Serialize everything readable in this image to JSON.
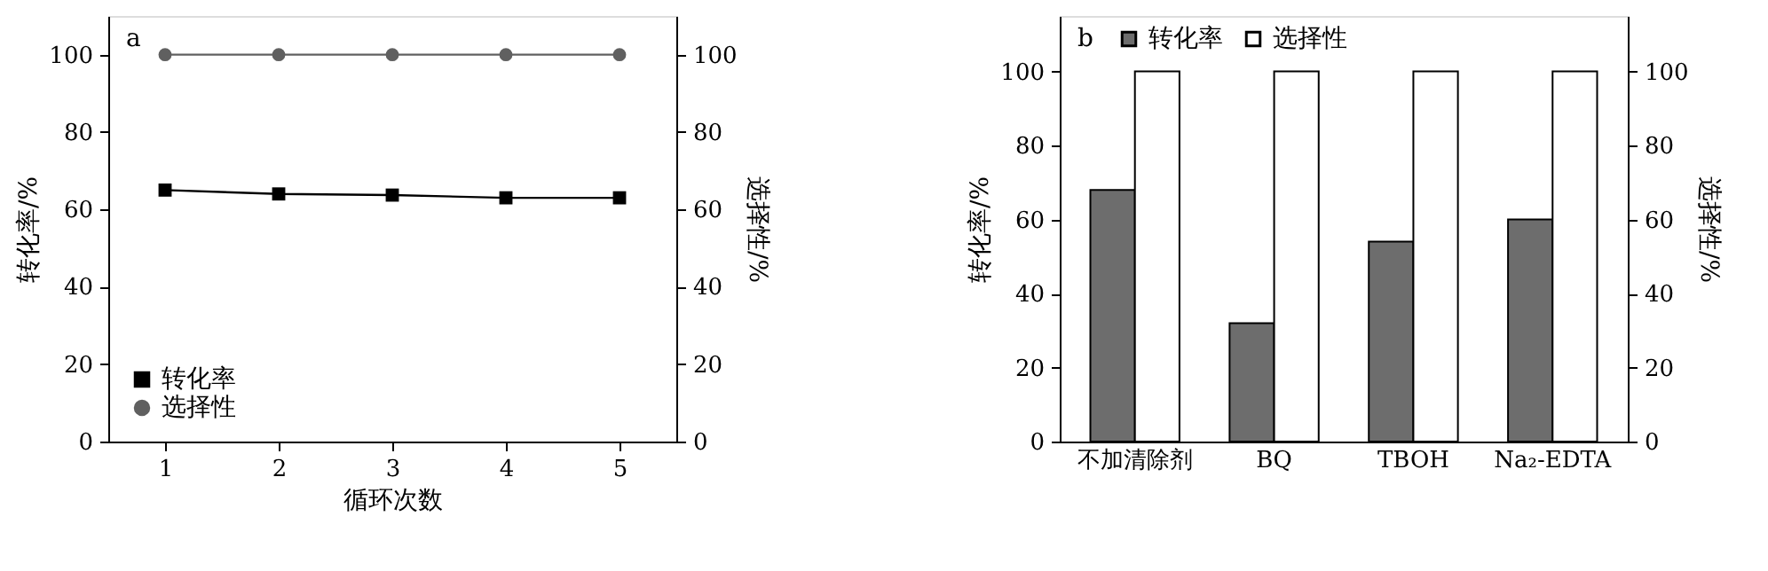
{
  "chart_data": [
    {
      "type": "line",
      "x": [
        1,
        2,
        3,
        4,
        5
      ],
      "xlabel": "循环次数",
      "ylabel": "转化率/%",
      "y2label": "选择性/%",
      "xlim": [
        0.5,
        5.5
      ],
      "xticks": [
        1,
        2,
        3,
        4,
        5
      ],
      "ylim": [
        0,
        110
      ],
      "yticks": [
        0,
        20,
        40,
        60,
        80,
        100
      ],
      "y2lim": [
        0,
        110
      ],
      "y2ticks": [
        0,
        20,
        40,
        60,
        80,
        100
      ],
      "legend": "bottom left",
      "annotations": [
        "a"
      ],
      "series": [
        {
          "name": "转化率",
          "color": "#000000",
          "marker": "square",
          "values": [
            65,
            64,
            63.7,
            63,
            63
          ]
        },
        {
          "name": "选择性",
          "color": "#606060",
          "marker": "circle",
          "axis": "y2",
          "values": [
            100,
            100,
            100,
            100,
            100
          ]
        }
      ]
    },
    {
      "type": "bar",
      "categories": [
        "不加清除剂",
        "BQ",
        "TBOH",
        "Na₂-EDTA"
      ],
      "ylabel": "转化率/%",
      "y2label": "选择性/%",
      "ylim": [
        0,
        115
      ],
      "yticks": [
        0,
        20,
        40,
        60,
        80,
        100
      ],
      "y2lim": [
        0,
        115
      ],
      "y2ticks": [
        0,
        20,
        40,
        60,
        80,
        100
      ],
      "legend": "top left",
      "annotations": [
        "b"
      ],
      "series": [
        {
          "name": "转化率",
          "color": "#6d6d6d",
          "values": [
            68,
            32,
            54,
            60
          ]
        },
        {
          "name": "选择性",
          "color": "#ffffff",
          "axis": "y2",
          "values": [
            100,
            100,
            100,
            100
          ]
        }
      ]
    }
  ]
}
